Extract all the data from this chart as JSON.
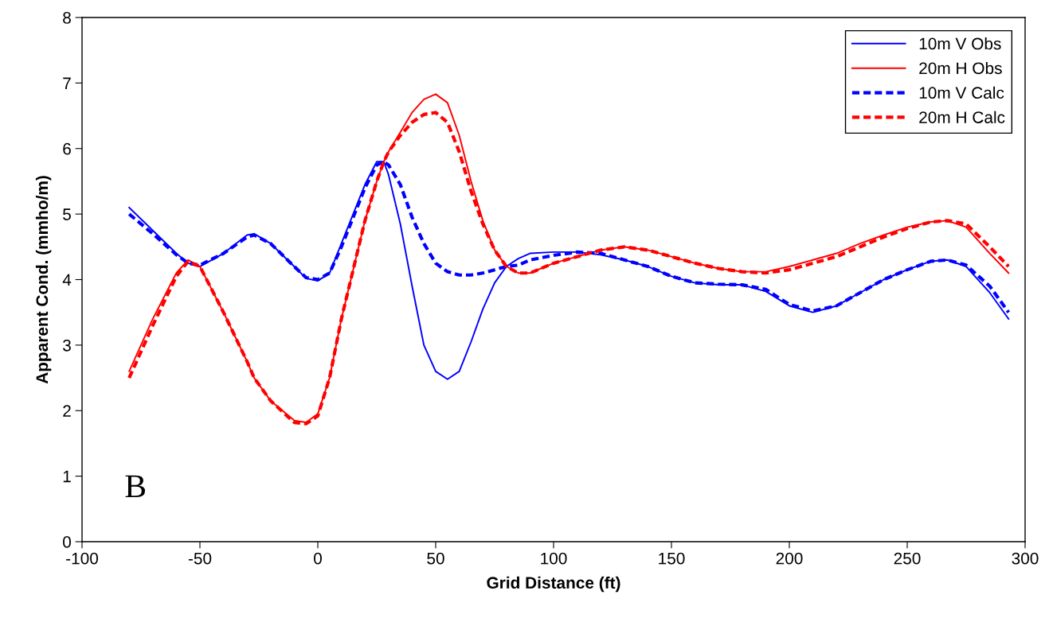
{
  "chart_data": {
    "type": "line",
    "xlabel": "Grid Distance (ft)",
    "ylabel": "Apparent Cond. (mmho/m)",
    "x": [
      -80,
      -70,
      -60,
      -55,
      -50,
      -40,
      -30,
      -27,
      -20,
      -10,
      -5,
      0,
      5,
      10,
      20,
      25,
      28,
      30,
      35,
      40,
      45,
      50,
      55,
      60,
      65,
      70,
      75,
      80,
      85,
      90,
      100,
      110,
      120,
      130,
      140,
      150,
      160,
      170,
      180,
      190,
      200,
      210,
      220,
      230,
      240,
      250,
      260,
      267,
      275,
      285,
      293
    ],
    "series": [
      {
        "name": "10m V Obs",
        "color": "#0000ff",
        "line_style": "solid",
        "values": [
          5.1,
          4.75,
          4.4,
          4.25,
          4.2,
          4.4,
          4.68,
          4.7,
          4.55,
          4.2,
          4.02,
          3.98,
          4.1,
          4.55,
          5.45,
          5.8,
          5.8,
          5.6,
          4.85,
          3.9,
          3.0,
          2.6,
          2.48,
          2.6,
          3.05,
          3.55,
          3.95,
          4.2,
          4.32,
          4.4,
          4.42,
          4.42,
          4.38,
          4.3,
          4.2,
          4.05,
          3.95,
          3.92,
          3.92,
          3.82,
          3.6,
          3.5,
          3.6,
          3.8,
          4.0,
          4.15,
          4.28,
          4.3,
          4.2,
          3.8,
          3.4
        ]
      },
      {
        "name": "20m H Obs",
        "color": "#ff0000",
        "line_style": "solid",
        "values": [
          2.6,
          3.4,
          4.1,
          4.3,
          4.2,
          3.5,
          2.75,
          2.5,
          2.15,
          1.85,
          1.82,
          1.95,
          2.5,
          3.4,
          4.9,
          5.5,
          5.8,
          5.95,
          6.25,
          6.55,
          6.75,
          6.83,
          6.7,
          6.2,
          5.5,
          4.9,
          4.45,
          4.2,
          4.1,
          4.1,
          4.25,
          4.35,
          4.45,
          4.5,
          4.45,
          4.35,
          4.25,
          4.17,
          4.12,
          4.12,
          4.2,
          4.3,
          4.4,
          4.55,
          4.68,
          4.8,
          4.88,
          4.9,
          4.8,
          4.4,
          4.1
        ]
      },
      {
        "name": "10m V Calc",
        "color": "#0000ff",
        "line_style": "dashed",
        "values": [
          5.0,
          4.7,
          4.38,
          4.25,
          4.22,
          4.4,
          4.65,
          4.68,
          4.55,
          4.2,
          4.03,
          4.0,
          4.1,
          4.5,
          5.4,
          5.75,
          5.8,
          5.75,
          5.45,
          4.95,
          4.55,
          4.25,
          4.12,
          4.07,
          4.07,
          4.1,
          4.15,
          4.2,
          4.22,
          4.3,
          4.37,
          4.42,
          4.4,
          4.3,
          4.2,
          4.05,
          3.95,
          3.93,
          3.92,
          3.85,
          3.62,
          3.52,
          3.6,
          3.8,
          4.0,
          4.15,
          4.28,
          4.3,
          4.22,
          3.9,
          3.5
        ]
      },
      {
        "name": "20m H Calc",
        "color": "#ff0000",
        "line_style": "dashed",
        "values": [
          2.5,
          3.3,
          4.05,
          4.28,
          4.2,
          3.5,
          2.75,
          2.5,
          2.15,
          1.82,
          1.8,
          1.92,
          2.5,
          3.4,
          4.9,
          5.5,
          5.8,
          5.95,
          6.2,
          6.4,
          6.52,
          6.55,
          6.4,
          5.95,
          5.35,
          4.85,
          4.45,
          4.2,
          4.1,
          4.1,
          4.25,
          4.35,
          4.45,
          4.5,
          4.45,
          4.35,
          4.25,
          4.17,
          4.12,
          4.1,
          4.15,
          4.25,
          4.35,
          4.5,
          4.65,
          4.78,
          4.88,
          4.9,
          4.85,
          4.5,
          4.2
        ]
      }
    ],
    "xlim": [
      -100,
      300
    ],
    "xticks": [
      -100,
      -50,
      0,
      50,
      100,
      150,
      200,
      250,
      300
    ],
    "ylim": [
      0,
      8
    ],
    "yticks": [
      0,
      1,
      2,
      3,
      4,
      5,
      6,
      7,
      8
    ],
    "annotations": [
      "B"
    ],
    "legend": "top right",
    "grid": false
  }
}
